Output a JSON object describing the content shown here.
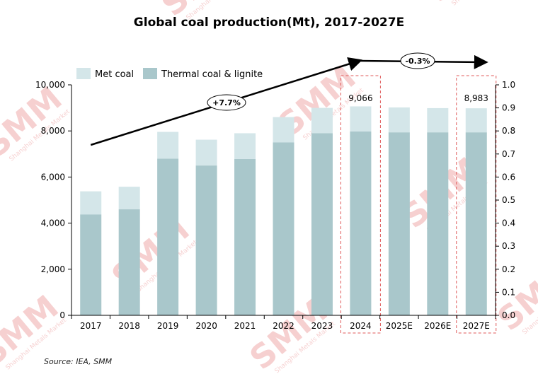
{
  "title": "Global coal production(Mt), 2017-2027E",
  "source": "Source: IEA,  SMM",
  "watermark": {
    "logo_text": "SMM",
    "sub_text": "Shanghai Metals Market",
    "color": "#e05a5a"
  },
  "colors": {
    "met_coal": "#d4e6e9",
    "thermal": "#a9c7cb",
    "highlight_box": "#e05a5a",
    "trend_line": "#000000"
  },
  "chart_data": {
    "type": "bar",
    "stacked": true,
    "categories": [
      "2017",
      "2018",
      "2019",
      "2020",
      "2021",
      "2022",
      "2023",
      "2024",
      "2025E",
      "2026E",
      "2027E"
    ],
    "series": [
      {
        "name": "Thermal coal & lignite",
        "values": [
          4380,
          4600,
          6800,
          6500,
          6780,
          7500,
          7900,
          7980,
          7940,
          7940,
          7940
        ]
      },
      {
        "name": "Met coal",
        "values": [
          1000,
          980,
          1160,
          1120,
          1120,
          1100,
          1100,
          1086,
          1080,
          1050,
          1043
        ]
      }
    ],
    "totals_labeled": [
      {
        "category": "2024",
        "label": "9,066"
      },
      {
        "category": "2027E",
        "label": "8,983"
      }
    ],
    "highlighted_categories": [
      "2024",
      "2027E"
    ],
    "ylim": [
      0,
      10000
    ],
    "yticks": [
      "0",
      "2,000",
      "4,000",
      "6,000",
      "8,000",
      "10,000"
    ],
    "y2lim": [
      0,
      1.0
    ],
    "y2ticks": [
      "0.0",
      "0.1",
      "0.2",
      "0.3",
      "0.4",
      "0.5",
      "0.6",
      "0.7",
      "0.8",
      "0.9",
      "1.0"
    ],
    "annotations": [
      {
        "label": "+7.7%",
        "from": "2017",
        "to": "2024"
      },
      {
        "label": "-0.3%",
        "from": "2024",
        "to": "2027E"
      }
    ],
    "legend_position": "top-left",
    "grid": false,
    "xlabel": "",
    "ylabel": ""
  }
}
